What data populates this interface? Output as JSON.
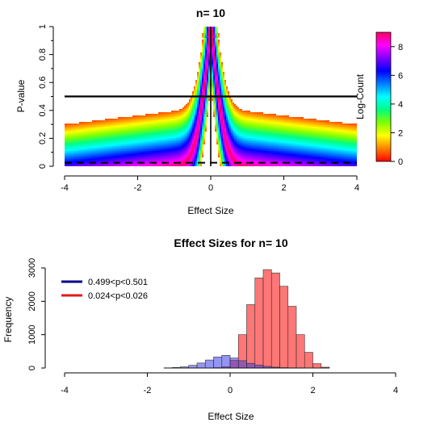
{
  "chart_data": [
    {
      "type": "heatmap",
      "title": "n= 10",
      "xlabel": "Effect Size",
      "ylabel": "P-value",
      "xlim": [
        -4,
        4
      ],
      "ylim": [
        0,
        1
      ],
      "x_ticks": [
        "-4",
        "-2",
        "0",
        "2",
        "4"
      ],
      "y_ticks": [
        "0",
        "0.2",
        "0.4",
        "0.6",
        "0.8",
        "1"
      ],
      "colorbar": {
        "label": "Log-Count",
        "ticks": [
          "0",
          "2",
          "4",
          "6",
          "8"
        ],
        "range": [
          0,
          9
        ],
        "colors": [
          "#ff0000",
          "#ff8000",
          "#ffff00",
          "#80ff00",
          "#00ff80",
          "#00ffff",
          "#0080ff",
          "#0000ff",
          "#8000ff",
          "#ff00ff",
          "#ff0060"
        ]
      },
      "reference_lines": {
        "horizontal_solid_p": 0.5,
        "horizontal_dashed_p": 0.025,
        "vertical_effect": 0
      }
    },
    {
      "type": "bar",
      "title": "Effect Sizes for n= 10",
      "xlabel": "Effect Size",
      "ylabel": "Frequency",
      "xlim": [
        -4,
        4
      ],
      "ylim": [
        0,
        3000
      ],
      "x_ticks": [
        "-4",
        "-2",
        "0",
        "2",
        "4"
      ],
      "y_ticks": [
        "0",
        "1000",
        "2000",
        "3000"
      ],
      "bin_width": 0.2,
      "legend": {
        "placement": "top-left",
        "entries": [
          {
            "label": "0.499<p<0.501",
            "color": "#00008b"
          },
          {
            "label": "0.024<p<0.026",
            "color": "#e31a1c"
          }
        ]
      },
      "series": [
        {
          "name": "0.499<p<0.501",
          "color": "#0000ff",
          "bin_starts": [
            -1.6,
            -1.4,
            -1.2,
            -1.0,
            -0.8,
            -0.6,
            -0.4,
            -0.2,
            0.0,
            0.2,
            0.4,
            0.6,
            0.8,
            1.0,
            1.2,
            1.4,
            1.6
          ],
          "values": [
            5,
            15,
            35,
            80,
            150,
            240,
            330,
            380,
            300,
            220,
            140,
            90,
            50,
            25,
            10,
            5,
            2
          ]
        },
        {
          "name": "0.024<p<0.026",
          "color": "#ff0000",
          "bin_starts": [
            -0.4,
            -0.2,
            0.0,
            0.2,
            0.4,
            0.6,
            0.8,
            1.0,
            1.2,
            1.4,
            1.6,
            1.8,
            2.0,
            2.2
          ],
          "values": [
            10,
            40,
            230,
            1000,
            1900,
            2700,
            2950,
            2850,
            2450,
            1850,
            1000,
            470,
            130,
            25
          ]
        }
      ]
    }
  ]
}
